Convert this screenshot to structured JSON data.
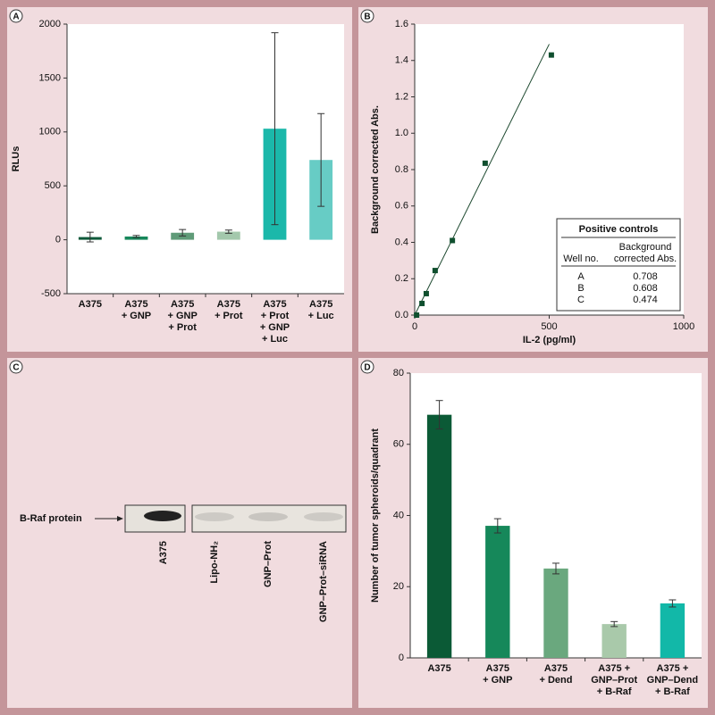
{
  "chart_data": [
    {
      "type": "bar",
      "panel_label": "A",
      "y_label": "RLUs",
      "categories": [
        [
          "A375"
        ],
        [
          "A375",
          "+ GNP"
        ],
        [
          "A375",
          "+ GNP",
          "+ Prot"
        ],
        [
          "A375",
          "+ Prot"
        ],
        [
          "A375",
          "+ Prot",
          "+ GNP",
          "+ Luc"
        ],
        [
          "A375",
          "+ Luc"
        ]
      ],
      "values": [
        25,
        30,
        65,
        75,
        1030,
        740
      ],
      "errors": [
        45,
        10,
        30,
        15,
        890,
        430
      ],
      "colors": [
        "#0f5a3a",
        "#17875a",
        "#5f9b78",
        "#a3c8ac",
        "#1bb8aa",
        "#67ccc5"
      ],
      "ylim": [
        -500,
        2000
      ],
      "yticks": [
        -500,
        0,
        500,
        1000,
        1500,
        2000
      ]
    },
    {
      "type": "scatter",
      "panel_label": "B",
      "x_label": "IL-2 (pg/ml)",
      "y_label": "Background corrected Abs.",
      "x": [
        7,
        27,
        43,
        76,
        140,
        262,
        508
      ],
      "values": [
        0,
        0.064,
        0.118,
        0.245,
        0.41,
        0.835,
        1.43
      ],
      "color": "#0f4f2e",
      "fit_line": {
        "x": [
          0,
          500
        ],
        "y": [
          0,
          1.49
        ]
      },
      "xlim": [
        0,
        1000
      ],
      "xticks": [
        0,
        500,
        1000
      ],
      "ylim": [
        0,
        1.6
      ],
      "yticks": [
        {
          "value": 0,
          "label": "0.0"
        },
        0.2,
        0.4,
        0.6,
        0.8,
        {
          "value": 1,
          "label": "1.0"
        },
        1.2,
        1.4,
        1.6
      ],
      "table": {
        "title": "Positive controls",
        "columns": [
          [
            "Well no."
          ],
          [
            "Background",
            "corrected Abs."
          ]
        ],
        "rows": [
          [
            "A",
            0.708
          ],
          [
            "B",
            0.608
          ],
          [
            "C",
            0.474
          ]
        ]
      }
    },
    {
      "type": "blot",
      "panel_label": "C",
      "band_label": "B-Raf protein",
      "lanes": [
        "A375",
        "Lipo-NH₂",
        "GNP–Prot",
        "GNP–Prot–siRNA"
      ]
    },
    {
      "type": "bar",
      "panel_label": "D",
      "y_label": "Number of tumor spheroids/quadrant",
      "categories": [
        [
          "A375"
        ],
        [
          "A375",
          "+ GNP"
        ],
        [
          "A375",
          "+ Dend"
        ],
        [
          "A375 +",
          "GNP–Prot",
          "+ B-Raf"
        ],
        [
          "A375 +",
          "GNP–Dend",
          "+ B-Raf"
        ]
      ],
      "values": [
        68.3,
        37.1,
        25.1,
        9.5,
        15.3
      ],
      "errors": [
        4,
        2,
        1.5,
        0.7,
        1
      ],
      "colors": [
        "#0b5a36",
        "#16885a",
        "#6aa87e",
        "#a9c9aa",
        "#12b8a8"
      ],
      "ylim": [
        0,
        80
      ],
      "yticks": [
        0,
        20,
        40,
        60,
        80
      ]
    }
  ]
}
